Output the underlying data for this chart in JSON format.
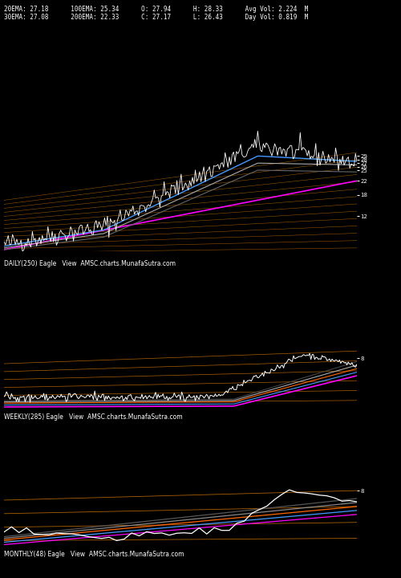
{
  "bg_color": "#000000",
  "text_color": "#ffffff",
  "orange_line_color": "#c87000",
  "magenta_line_color": "#ff00ff",
  "blue_line_color": "#4499ff",
  "gray_line_color": "#888888",
  "white_line_color": "#ffffff",
  "header_line1": "20EMA: 27.18      100EMA: 25.34      O: 27.94      H: 28.33      Avg Vol: 2.224  M",
  "header_line2": "30EMA: 27.08      200EMA: 22.33      C: 27.17      L: 26.43      Day Vol: 0.819  M",
  "daily_label": "DAILY(250) Eagle   View  AMSC.charts.MunafaSutra.com",
  "weekly_label": "WEEKLY(285) Eagle   View  AMSC.charts.MunafaSutra.com",
  "monthly_label": "MONTHLY(48) Eagle   View  AMSC.charts.MunafaSutra.com",
  "num_orange_lines_daily": 14,
  "num_orange_lines_weekly": 6,
  "num_orange_lines_monthly": 4
}
